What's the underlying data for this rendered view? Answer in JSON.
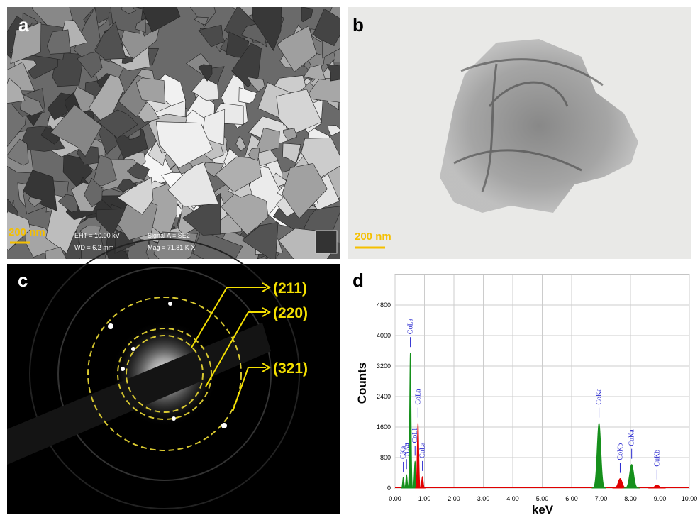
{
  "panels": [
    {
      "label": "a",
      "scale_bar": "200 nm",
      "info": [
        "EHT = 10.00 kV",
        "WD = 6.2 mm",
        "Signal A = SE2",
        "Mag = 71.81 K X"
      ]
    },
    {
      "label": "b",
      "scale_bar": "200 nm"
    },
    {
      "label": "c",
      "planes": [
        "(211)",
        "(220)",
        "(321)"
      ]
    },
    {
      "label": "d"
    }
  ],
  "chart_data": {
    "type": "spectrum",
    "xlabel": "keV",
    "ylabel": "Counts",
    "xlim": [
      0,
      10
    ],
    "ylim": [
      0,
      5600
    ],
    "xticks": [
      {
        "value": 0,
        "label": "0.00"
      },
      {
        "value": 1,
        "label": "1.00"
      },
      {
        "value": 2,
        "label": "2.00"
      },
      {
        "value": 3,
        "label": "3.00"
      },
      {
        "value": 4,
        "label": "4.00"
      },
      {
        "value": 5,
        "label": "5.00"
      },
      {
        "value": 6,
        "label": "6.00"
      },
      {
        "value": 7,
        "label": "7.00"
      },
      {
        "value": 8,
        "label": "8.00"
      },
      {
        "value": 9,
        "label": "9.00"
      },
      {
        "value": 10,
        "label": "10.00"
      }
    ],
    "yticks": [
      0,
      800,
      1600,
      2400,
      3200,
      4000,
      4800
    ],
    "grid": true,
    "label_color": "#2a2ad0",
    "peaks": [
      {
        "label": "CKa",
        "x": 0.28,
        "counts": 280,
        "color": "#16901c"
      },
      {
        "label": "NKa",
        "x": 0.39,
        "counts": 350,
        "color": "#16901c"
      },
      {
        "label": "CoLa",
        "x": 0.52,
        "counts": 3550,
        "color": "#16901c"
      },
      {
        "label": "CoLl",
        "x": 0.68,
        "counts": 700,
        "color": "#16901c"
      },
      {
        "label": "CoLa",
        "x": 0.78,
        "counts": 1700,
        "color": "#e00000"
      },
      {
        "label": "CuLa",
        "x": 0.93,
        "counts": 300,
        "color": "#e00000"
      },
      {
        "label": "CoKa",
        "x": 6.93,
        "counts": 1700,
        "color": "#16901c"
      },
      {
        "label": "CoKb",
        "x": 7.65,
        "counts": 250,
        "color": "#e00000"
      },
      {
        "label": "CuKa",
        "x": 8.04,
        "counts": 620,
        "color": "#16901c"
      },
      {
        "label": "CuKb",
        "x": 8.9,
        "counts": 80,
        "color": "#e00000"
      }
    ]
  }
}
